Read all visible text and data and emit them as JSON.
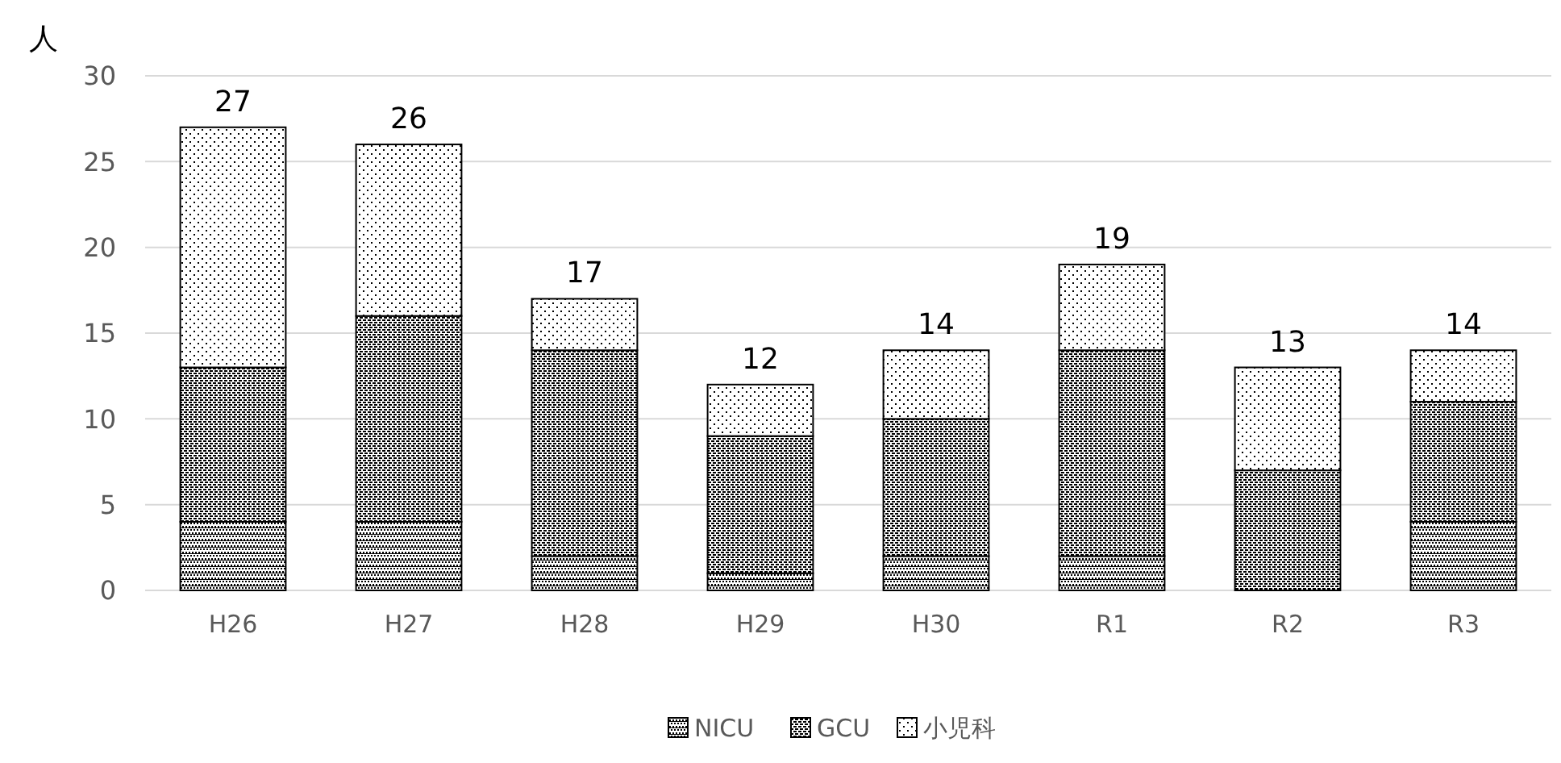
{
  "chart_data": {
    "type": "bar",
    "stacked": true,
    "ylabel": "人",
    "categories": [
      "H26",
      "H27",
      "H28",
      "H29",
      "H30",
      "R1",
      "R2",
      "R3"
    ],
    "series": [
      {
        "name": "NICU",
        "color": "#000000",
        "values": [
          4,
          4,
          2,
          1,
          2,
          2,
          0,
          4
        ]
      },
      {
        "name": "GCU",
        "color": "#000000",
        "values": [
          9,
          12,
          12,
          8,
          8,
          12,
          7,
          7
        ]
      },
      {
        "name": "小児科",
        "color": "#000000",
        "values": [
          14,
          10,
          3,
          3,
          4,
          5,
          6,
          3
        ]
      }
    ],
    "totals": [
      "27",
      "26",
      "17",
      "12",
      "14",
      "19",
      "13",
      "14"
    ],
    "ylim": [
      0,
      30
    ],
    "yticks": [
      0,
      5,
      10,
      15,
      20,
      25,
      30
    ],
    "grid": "y",
    "legend": "bottom"
  }
}
